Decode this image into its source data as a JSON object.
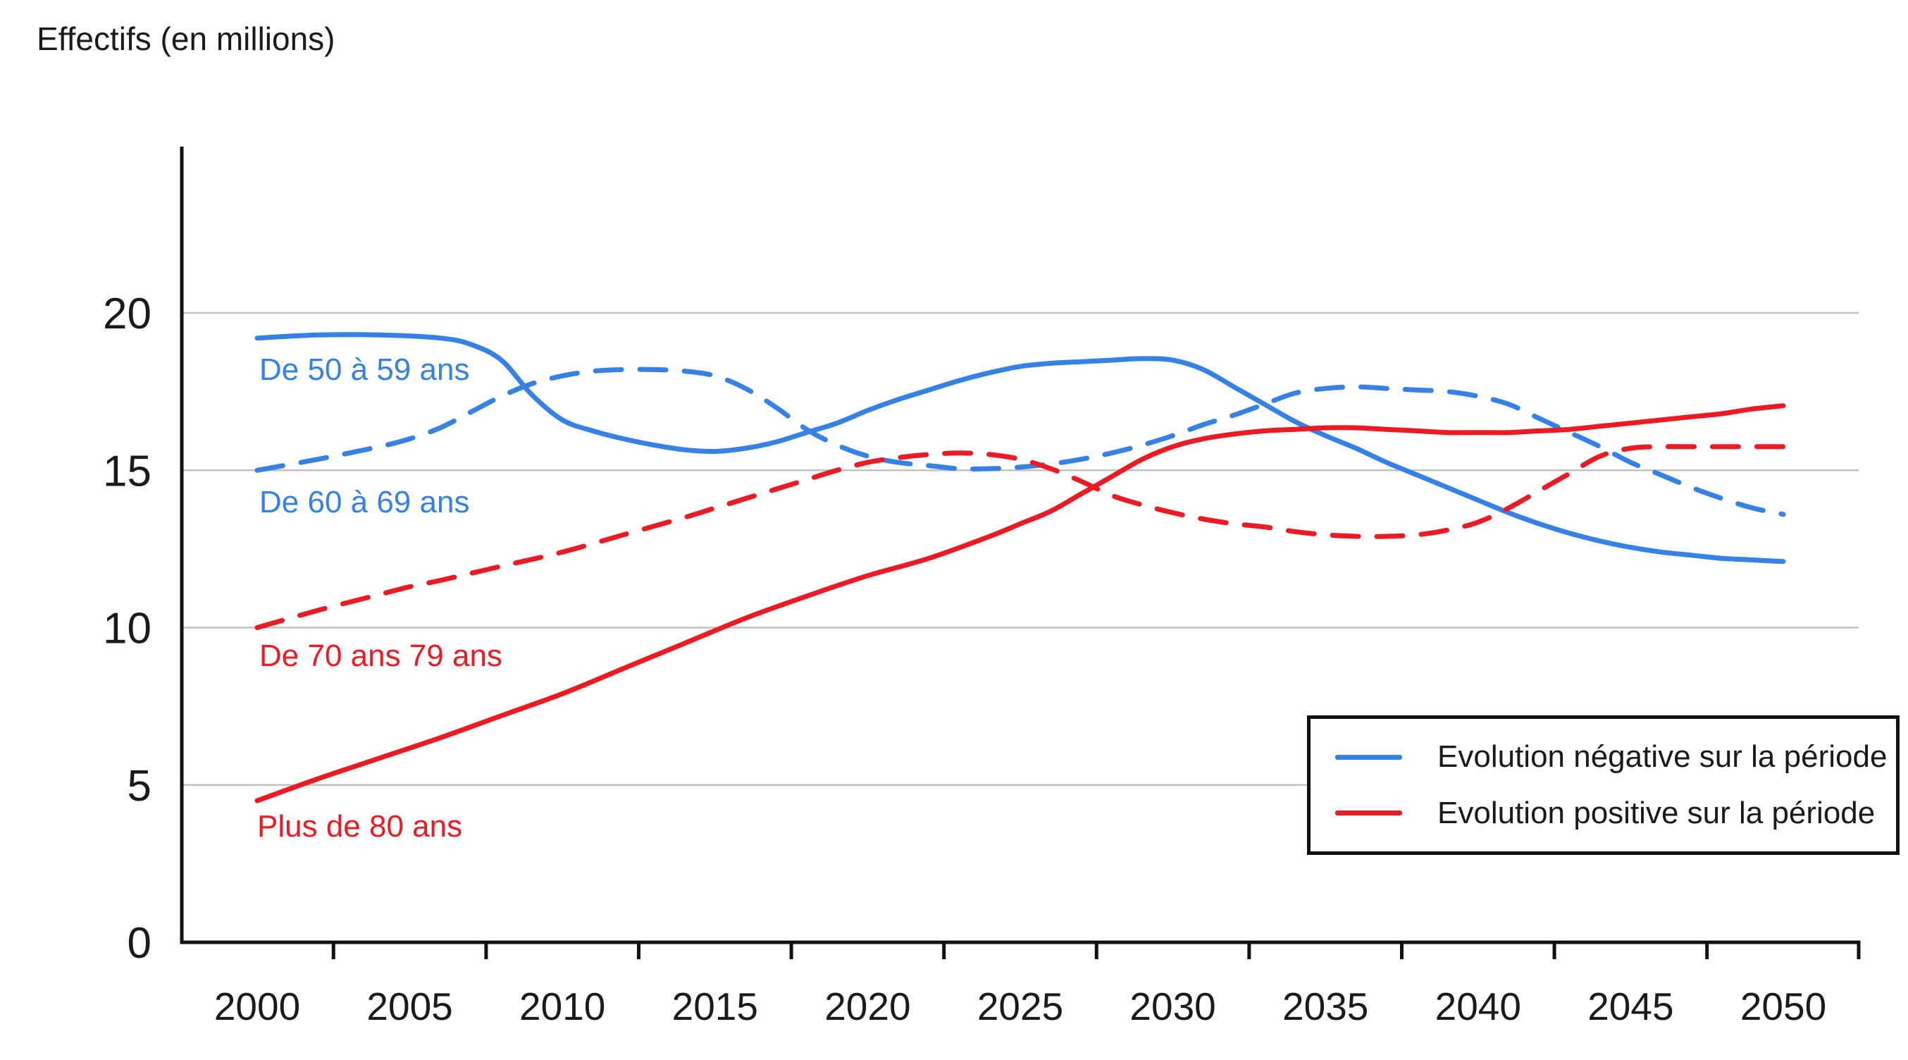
{
  "title": "Effectifs (en millions)",
  "colors": {
    "blue": "#3581e4",
    "red": "#ec1b23",
    "axis": "#111111",
    "grid": "#c2c2c2",
    "text": "#1a1a1a"
  },
  "legend": {
    "items": [
      {
        "label": "Evolution négative sur la période",
        "color_key": "blue"
      },
      {
        "label": "Evolution positive sur la période",
        "color_key": "red"
      }
    ]
  },
  "chart_data": {
    "type": "line",
    "title": "Effectifs (en millions)",
    "x_axis": {
      "range": [
        2000,
        2050
      ],
      "tick_labels": [
        2000,
        2005,
        2010,
        2015,
        2020,
        2025,
        2030,
        2035,
        2040,
        2045,
        2050
      ],
      "tick_marks_years": [
        2002.5,
        2007.5,
        2012.5,
        2017.5,
        2022.5,
        2027.5,
        2032.5,
        2037.5,
        2042.5,
        2047.5
      ]
    },
    "y_axis": {
      "range": [
        0,
        24
      ],
      "tick_labels": [
        0,
        5,
        10,
        15,
        20
      ],
      "gridlines": [
        5,
        10,
        15,
        20
      ]
    },
    "grid": "horizontal-only",
    "legend_position": "bottom-right-inset",
    "series": [
      {
        "name": "De 50 à 59 ans",
        "color_key": "blue",
        "style": "solid",
        "trend": "negative",
        "points": [
          [
            2000,
            19.2
          ],
          [
            2002,
            19.3
          ],
          [
            2004,
            19.3
          ],
          [
            2006,
            19.2
          ],
          [
            2007,
            19.0
          ],
          [
            2008,
            18.5
          ],
          [
            2009,
            17.4
          ],
          [
            2010,
            16.6
          ],
          [
            2011,
            16.25
          ],
          [
            2012,
            16.0
          ],
          [
            2013,
            15.8
          ],
          [
            2014,
            15.65
          ],
          [
            2015,
            15.6
          ],
          [
            2016,
            15.7
          ],
          [
            2017,
            15.9
          ],
          [
            2018,
            16.2
          ],
          [
            2019,
            16.5
          ],
          [
            2020,
            16.9
          ],
          [
            2021,
            17.25
          ],
          [
            2022,
            17.55
          ],
          [
            2023,
            17.85
          ],
          [
            2024,
            18.1
          ],
          [
            2025,
            18.3
          ],
          [
            2026,
            18.4
          ],
          [
            2027,
            18.45
          ],
          [
            2028,
            18.5
          ],
          [
            2029,
            18.55
          ],
          [
            2030,
            18.5
          ],
          [
            2031,
            18.2
          ],
          [
            2032,
            17.65
          ],
          [
            2033,
            17.1
          ],
          [
            2034,
            16.55
          ],
          [
            2035,
            16.1
          ],
          [
            2036,
            15.7
          ],
          [
            2037,
            15.25
          ],
          [
            2038,
            14.85
          ],
          [
            2039,
            14.45
          ],
          [
            2040,
            14.05
          ],
          [
            2041,
            13.65
          ],
          [
            2042,
            13.3
          ],
          [
            2043,
            13.0
          ],
          [
            2044,
            12.75
          ],
          [
            2045,
            12.55
          ],
          [
            2046,
            12.4
          ],
          [
            2047,
            12.3
          ],
          [
            2048,
            12.2
          ],
          [
            2049,
            12.15
          ],
          [
            2050,
            12.1
          ]
        ]
      },
      {
        "name": "De 60 à 69 ans",
        "color_key": "blue",
        "style": "dashed",
        "trend": "negative",
        "points": [
          [
            2000,
            15.0
          ],
          [
            2002,
            15.35
          ],
          [
            2004,
            15.75
          ],
          [
            2005,
            16.0
          ],
          [
            2006,
            16.35
          ],
          [
            2007,
            16.85
          ],
          [
            2008,
            17.35
          ],
          [
            2009,
            17.75
          ],
          [
            2010,
            18.0
          ],
          [
            2011,
            18.15
          ],
          [
            2012,
            18.2
          ],
          [
            2013,
            18.2
          ],
          [
            2014,
            18.15
          ],
          [
            2015,
            18.0
          ],
          [
            2016,
            17.6
          ],
          [
            2017,
            17.0
          ],
          [
            2018,
            16.3
          ],
          [
            2019,
            15.8
          ],
          [
            2020,
            15.45
          ],
          [
            2021,
            15.25
          ],
          [
            2022,
            15.15
          ],
          [
            2023,
            15.05
          ],
          [
            2024,
            15.05
          ],
          [
            2025,
            15.1
          ],
          [
            2026,
            15.2
          ],
          [
            2027,
            15.35
          ],
          [
            2028,
            15.55
          ],
          [
            2029,
            15.8
          ],
          [
            2030,
            16.1
          ],
          [
            2031,
            16.45
          ],
          [
            2032,
            16.75
          ],
          [
            2033,
            17.1
          ],
          [
            2034,
            17.45
          ],
          [
            2035,
            17.6
          ],
          [
            2036,
            17.65
          ],
          [
            2037,
            17.6
          ],
          [
            2038,
            17.55
          ],
          [
            2039,
            17.5
          ],
          [
            2040,
            17.35
          ],
          [
            2041,
            17.1
          ],
          [
            2042,
            16.65
          ],
          [
            2043,
            16.2
          ],
          [
            2044,
            15.75
          ],
          [
            2045,
            15.25
          ],
          [
            2046,
            14.85
          ],
          [
            2047,
            14.45
          ],
          [
            2048,
            14.1
          ],
          [
            2049,
            13.8
          ],
          [
            2050,
            13.6
          ]
        ]
      },
      {
        "name": "De 70 ans 79 ans",
        "color_key": "red",
        "style": "dashed",
        "trend": "positive",
        "points": [
          [
            2000,
            10.0
          ],
          [
            2002,
            10.55
          ],
          [
            2004,
            11.05
          ],
          [
            2005,
            11.3
          ],
          [
            2006,
            11.5
          ],
          [
            2008,
            11.95
          ],
          [
            2010,
            12.4
          ],
          [
            2012,
            12.95
          ],
          [
            2014,
            13.5
          ],
          [
            2015,
            13.8
          ],
          [
            2016,
            14.1
          ],
          [
            2017,
            14.4
          ],
          [
            2018,
            14.7
          ],
          [
            2019,
            15.0
          ],
          [
            2020,
            15.25
          ],
          [
            2021,
            15.4
          ],
          [
            2022,
            15.5
          ],
          [
            2023,
            15.55
          ],
          [
            2024,
            15.5
          ],
          [
            2025,
            15.35
          ],
          [
            2026,
            15.05
          ],
          [
            2027,
            14.65
          ],
          [
            2028,
            14.2
          ],
          [
            2029,
            13.9
          ],
          [
            2030,
            13.65
          ],
          [
            2031,
            13.45
          ],
          [
            2032,
            13.3
          ],
          [
            2033,
            13.2
          ],
          [
            2034,
            13.05
          ],
          [
            2035,
            12.95
          ],
          [
            2036,
            12.9
          ],
          [
            2037,
            12.9
          ],
          [
            2038,
            12.95
          ],
          [
            2039,
            13.1
          ],
          [
            2040,
            13.35
          ],
          [
            2041,
            13.8
          ],
          [
            2042,
            14.35
          ],
          [
            2043,
            14.9
          ],
          [
            2044,
            15.45
          ],
          [
            2045,
            15.7
          ],
          [
            2046,
            15.75
          ],
          [
            2047,
            15.75
          ],
          [
            2048,
            15.75
          ],
          [
            2049,
            15.75
          ],
          [
            2050,
            15.75
          ]
        ]
      },
      {
        "name": "Plus de 80 ans",
        "color_key": "red",
        "style": "solid",
        "trend": "positive",
        "points": [
          [
            2000,
            4.5
          ],
          [
            2002,
            5.2
          ],
          [
            2004,
            5.85
          ],
          [
            2006,
            6.5
          ],
          [
            2008,
            7.2
          ],
          [
            2010,
            7.9
          ],
          [
            2012,
            8.7
          ],
          [
            2014,
            9.5
          ],
          [
            2016,
            10.3
          ],
          [
            2018,
            11.0
          ],
          [
            2020,
            11.65
          ],
          [
            2022,
            12.2
          ],
          [
            2024,
            12.9
          ],
          [
            2025,
            13.3
          ],
          [
            2026,
            13.7
          ],
          [
            2027,
            14.25
          ],
          [
            2028,
            14.8
          ],
          [
            2029,
            15.35
          ],
          [
            2030,
            15.75
          ],
          [
            2031,
            16.0
          ],
          [
            2032,
            16.15
          ],
          [
            2033,
            16.25
          ],
          [
            2034,
            16.3
          ],
          [
            2035,
            16.35
          ],
          [
            2036,
            16.35
          ],
          [
            2037,
            16.3
          ],
          [
            2038,
            16.25
          ],
          [
            2039,
            16.2
          ],
          [
            2040,
            16.2
          ],
          [
            2041,
            16.2
          ],
          [
            2042,
            16.25
          ],
          [
            2043,
            16.3
          ],
          [
            2044,
            16.4
          ],
          [
            2045,
            16.5
          ],
          [
            2046,
            16.6
          ],
          [
            2047,
            16.7
          ],
          [
            2048,
            16.8
          ],
          [
            2049,
            16.95
          ],
          [
            2050,
            17.05
          ]
        ]
      }
    ]
  }
}
